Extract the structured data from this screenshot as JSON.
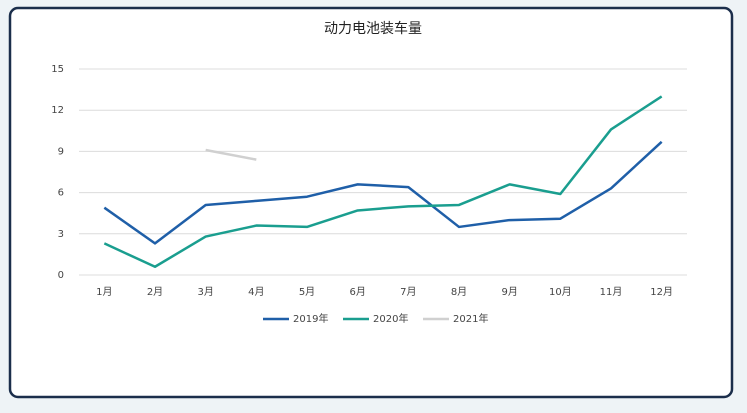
{
  "chart_data": {
    "type": "line",
    "title": "动力电池装车量",
    "categories": [
      "1月",
      "2月",
      "3月",
      "4月",
      "5月",
      "6月",
      "7月",
      "8月",
      "9月",
      "10月",
      "11月",
      "12月"
    ],
    "series": [
      {
        "name": "2019年",
        "color": "#1f5fa8",
        "values": [
          4.9,
          2.3,
          5.1,
          5.4,
          5.7,
          6.6,
          6.4,
          3.5,
          4.0,
          4.1,
          6.3,
          9.7
        ]
      },
      {
        "name": "2020年",
        "color": "#1a9e8f",
        "values": [
          2.3,
          0.6,
          2.8,
          3.6,
          3.5,
          4.7,
          5.0,
          5.1,
          6.6,
          5.9,
          10.6,
          13.0
        ]
      },
      {
        "name": "2021年",
        "color": "#d0d0d0",
        "values": [
          null,
          null,
          9.1,
          8.4,
          null,
          null,
          null,
          null,
          null,
          null,
          null,
          null
        ]
      }
    ],
    "ylim": [
      0,
      15
    ],
    "yticks": [
      0,
      3,
      6,
      9,
      12,
      15
    ],
    "grid": true,
    "legend": "bottom"
  }
}
